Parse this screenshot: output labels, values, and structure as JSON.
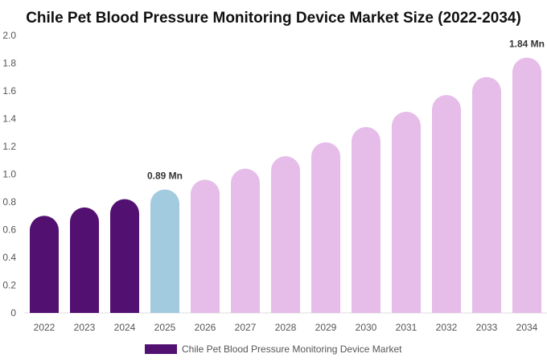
{
  "chart_data": {
    "type": "bar",
    "title": "Chile Pet Blood Pressure Monitoring Device Market Size (2022-2034)",
    "categories": [
      "2022",
      "2023",
      "2024",
      "2025",
      "2026",
      "2027",
      "2028",
      "2029",
      "2030",
      "2031",
      "2032",
      "2033",
      "2034"
    ],
    "series": [
      {
        "name": "Chile Pet Blood Pressure Monitoring Device Market",
        "values": [
          0.7,
          0.76,
          0.82,
          0.89,
          0.96,
          1.04,
          1.13,
          1.23,
          1.34,
          1.45,
          1.57,
          1.7,
          1.84
        ]
      }
    ],
    "data_labels": [
      {
        "index": 3,
        "text": "0.89 Mn"
      },
      {
        "index": 12,
        "text": "1.84 Mn"
      }
    ],
    "yticks": [
      "0",
      "0.2",
      "0.4",
      "0.6",
      "0.8",
      "1.0",
      "1.2",
      "1.4",
      "1.6",
      "1.8",
      "2.0"
    ],
    "ylim": [
      0,
      2.0
    ],
    "xlabel": "",
    "ylabel": "",
    "grid": false,
    "legend_position": "bottom",
    "colors": {
      "historical": "#521071",
      "base_year": "#a3cbdf",
      "forecast": "#e6bde9",
      "legend_swatch": "#521071"
    }
  }
}
